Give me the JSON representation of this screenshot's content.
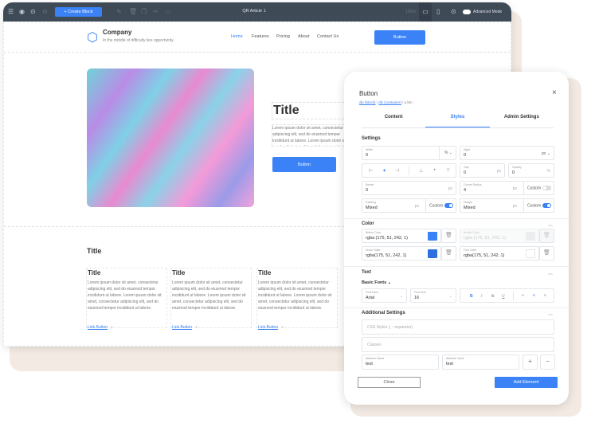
{
  "toolbar": {
    "title": "QR Article 1",
    "create_label": "+ Create Block",
    "zoom": "100%",
    "advanced_mode": "Advanced Mode"
  },
  "site": {
    "company": "Company",
    "tagline": "In the middle of difficulty lies opportunity.",
    "nav": [
      "Home",
      "Features",
      "Pricing",
      "About",
      "Contact Us"
    ],
    "header_button": "Button",
    "hero": {
      "title": "Title",
      "text": "Lorem ipsum dolor sit amet, consectetur adipiscing elit, sed do eiusmod tempor incididunt ut labore. Lorem ipsum dolor sit amet, adipiscing elit, sed do eiusmod tempor",
      "button": "Button"
    },
    "section_title": "Title",
    "cards": [
      {
        "title": "Title",
        "text": "Lorem ipsum dolor sit amet, consectetur adipiscing elit, sed do eiusmod tempor incididunt ut labore. Lorem ipsum dolor sit amet, consectetur adipiscing elit, sed do eiusmod tempor incididunt ut labore.",
        "link": "Link Button"
      },
      {
        "title": "Title",
        "text": "Lorem ipsum dolor sit amet, consectetur adipiscing elit, sed do eiusmod tempor incididunt ut labore. Lorem ipsum dolor sit amet, consectetur adipiscing elit, sed do eiusmod tempor incididunt ut labore.",
        "link": "Link Button"
      },
      {
        "title": "Title",
        "text": "Lorem ipsum dolor sit amet, consectetur adipiscing elit, sed do eiusmod tempor incididunt ut labore. Lorem ipsum dolor sit amet, consectetur adipiscing elit, sed do eiusmod tempor incididunt ut labore.",
        "link": "Link Button"
      }
    ]
  },
  "panel": {
    "title": "Button",
    "breadcrumb": [
      "div (block)",
      "div (container)",
      "a btn"
    ],
    "tabs": [
      "Content",
      "Styles",
      "Admin Settings"
    ],
    "active_tab": "Styles",
    "settings": {
      "label": "Settings",
      "width_label": "Width",
      "width": "0",
      "width_unit": "%",
      "height_label": "Hight",
      "height": "0",
      "height_unit": "px",
      "gap_label": "Gap",
      "gap": "0",
      "gap_unit": "px",
      "opacity_label": "Opacity",
      "opacity": "0",
      "opacity_unit": "%",
      "border_label": "Border",
      "border": "0",
      "border_unit": "px",
      "radius_label": "Corner Radius",
      "radius": "4",
      "radius_unit": "px",
      "radius_custom": "Custom",
      "radius_custom_on": false,
      "padding_label": "Padding",
      "padding": "Mixed",
      "padding_unit": "px",
      "padding_custom": "Custom",
      "padding_custom_on": true,
      "margin_label": "Margin",
      "margin": "Mixed",
      "margin_unit": "px",
      "margin_custom": "Custom",
      "margin_custom_on": true
    },
    "color": {
      "label": "Color",
      "button_color_label": "Button Color",
      "button_color": "rgba (175, 51, 242, 1)",
      "border_color_label": "Border Color",
      "border_color": "rgba (175, 51, 242, 1)",
      "hover_label": "Hover State",
      "hover": "rgba(175, 51, 242, 1)",
      "font_color_label": "Font Color",
      "font_color": "rgba(175, 51, 242, 1)",
      "swatches": {
        "button": "#3b82f6",
        "border": "#dfe2e6",
        "hover": "#2f6fe0",
        "font": "#ffffff"
      }
    },
    "text": {
      "label": "Text",
      "basic_fonts": "Basic Fonts",
      "font_face_label": "Font Face",
      "font_face": "Arial",
      "font_size_label": "Font Size",
      "font_size": "16"
    },
    "additional": {
      "label": "Additional Settings",
      "css_placeholder": "CSS Styles (; - separator)",
      "classes_placeholder": "Classes",
      "attr_name_label": "Attribute Name",
      "attr_name": "test",
      "attr_value_label": "Attribute Value",
      "attr_value": "test"
    },
    "close": "Close",
    "add": "Add Element"
  },
  "colors": {
    "accent": "#3b82f6",
    "toolbar": "#3f4a57",
    "beige": "#f3ebe3"
  }
}
